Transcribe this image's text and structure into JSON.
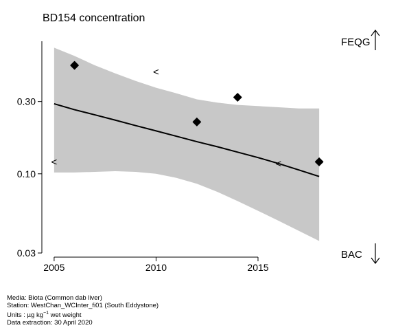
{
  "chart_data": {
    "type": "scatter",
    "title": "BD154 concentration",
    "y_scale": "log",
    "xlim": [
      2004.6,
      2018.4
    ],
    "ylim": [
      0.03,
      0.75
    ],
    "x_ticks": [
      2005,
      2010,
      2015
    ],
    "x_tick_labels": [
      "2005",
      "2010",
      "2015"
    ],
    "y_ticks": [
      0.03,
      0.1,
      0.3
    ],
    "y_tick_labels": [
      "0.03",
      "0.10",
      "0.30"
    ],
    "points": [
      {
        "x": 2006,
        "y": 0.52
      },
      {
        "x": 2012,
        "y": 0.22
      },
      {
        "x": 2014,
        "y": 0.32
      },
      {
        "x": 2018,
        "y": 0.12
      }
    ],
    "less_than_points": [
      {
        "x": 2005,
        "y": 0.12
      },
      {
        "x": 2010,
        "y": 0.47
      },
      {
        "x": 2016,
        "y": 0.117
      }
    ],
    "trend": {
      "x": [
        2005,
        2006,
        2007,
        2008,
        2009,
        2010,
        2011,
        2012,
        2013,
        2014,
        2015,
        2016,
        2017,
        2018
      ],
      "y": [
        0.29,
        0.265,
        0.245,
        0.226,
        0.208,
        0.192,
        0.177,
        0.163,
        0.151,
        0.139,
        0.128,
        0.117,
        0.106,
        0.096
      ],
      "upper": [
        0.68,
        0.6,
        0.52,
        0.46,
        0.41,
        0.37,
        0.34,
        0.31,
        0.295,
        0.285,
        0.28,
        0.275,
        0.27,
        0.27
      ],
      "lower": [
        0.102,
        0.102,
        0.103,
        0.104,
        0.103,
        0.1,
        0.094,
        0.086,
        0.076,
        0.066,
        0.057,
        0.049,
        0.042,
        0.036
      ]
    },
    "reference_lines": [
      {
        "label": "FEQG",
        "arrow": "up"
      },
      {
        "label": "BAC",
        "arrow": "down"
      }
    ],
    "colors": {
      "band": "#c8c8c8",
      "line": "#000000",
      "points": "#000000"
    }
  },
  "meta": {
    "media": "Media: Biota (Common dab liver)",
    "station": "Station: WestChan_WCInter_fi01 (South Eddystone)",
    "units_prefix": "Units : µg kg",
    "units_exp": "−1",
    "units_suffix": " wet weight",
    "extraction": "Data extraction: 30 April 2020"
  }
}
